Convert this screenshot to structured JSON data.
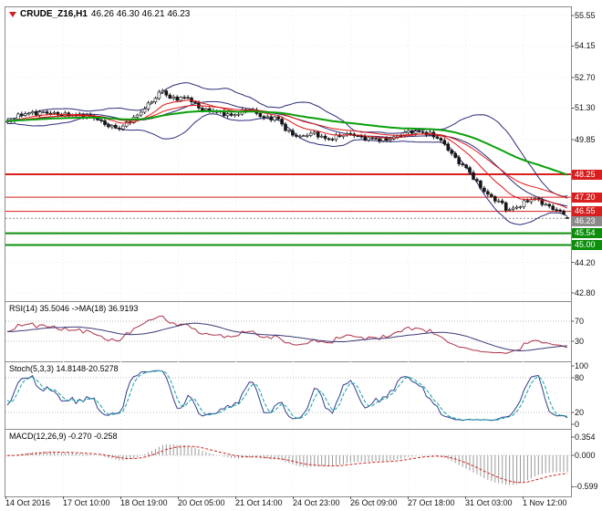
{
  "window": {
    "symbol": "CRUDE_Z16,H1",
    "ohlc": "46.26 46.30 46.21 46.23"
  },
  "colors": {
    "frame": "#8a8a8a",
    "grid": "#ececec",
    "candle": "#161616",
    "bull_fill": "#ffffff",
    "bear_fill": "#161616",
    "resistance_red": "#d81e1e",
    "support_green": "#0d8f0d",
    "current_gray": "#8a8a8a"
  },
  "chart_data": {
    "type": "candlestick",
    "symbol": "CRUDE_Z16,H1",
    "timeframe": "H1",
    "last_ohlc": {
      "open": 46.26,
      "high": 46.3,
      "low": 46.21,
      "close": 46.23
    },
    "main": {
      "ylim": [
        42.42,
        55.93
      ],
      "yticks": [
        "55.55",
        "54.15",
        "52.70",
        "51.30",
        "49.85",
        "44.20",
        "42.80"
      ],
      "grid_prices": [
        55.55,
        54.15,
        52.7,
        51.3,
        49.85,
        48.4,
        46.95,
        45.5,
        44.2,
        42.8
      ],
      "bar_count": 156,
      "price_keypoints": [
        [
          0.0,
          50.7
        ],
        [
          0.016,
          50.9
        ],
        [
          0.04,
          51.05
        ],
        [
          0.064,
          51.15
        ],
        [
          0.09,
          50.95
        ],
        [
          0.115,
          51.05
        ],
        [
          0.14,
          50.9
        ],
        [
          0.161,
          50.8
        ],
        [
          0.185,
          50.45
        ],
        [
          0.201,
          50.3
        ],
        [
          0.22,
          50.75
        ],
        [
          0.241,
          51.2
        ],
        [
          0.26,
          51.6
        ],
        [
          0.277,
          52.15
        ],
        [
          0.29,
          51.8
        ],
        [
          0.31,
          51.7
        ],
        [
          0.322,
          51.75
        ],
        [
          0.346,
          51.3
        ],
        [
          0.37,
          51.1
        ],
        [
          0.4,
          51.0
        ],
        [
          0.434,
          51.2
        ],
        [
          0.458,
          50.9
        ],
        [
          0.482,
          50.8
        ],
        [
          0.498,
          50.25
        ],
        [
          0.523,
          50.0
        ],
        [
          0.547,
          50.1
        ],
        [
          0.571,
          49.9
        ],
        [
          0.595,
          50.0
        ],
        [
          0.619,
          50.1
        ],
        [
          0.643,
          49.9
        ],
        [
          0.667,
          49.8
        ],
        [
          0.691,
          50.0
        ],
        [
          0.715,
          50.15
        ],
        [
          0.74,
          50.25
        ],
        [
          0.756,
          50.1
        ],
        [
          0.772,
          49.8
        ],
        [
          0.788,
          49.4
        ],
        [
          0.804,
          48.9
        ],
        [
          0.82,
          48.5
        ],
        [
          0.836,
          47.9
        ],
        [
          0.852,
          47.5
        ],
        [
          0.868,
          47.15
        ],
        [
          0.884,
          46.85
        ],
        [
          0.892,
          46.55
        ],
        [
          0.908,
          46.75
        ],
        [
          0.924,
          47.0
        ],
        [
          0.94,
          47.1
        ],
        [
          0.957,
          46.9
        ],
        [
          0.973,
          46.75
        ],
        [
          0.989,
          46.5
        ],
        [
          1.0,
          46.23
        ]
      ],
      "levels": [
        {
          "price": 48.25,
          "label": "48.25",
          "color": "#d81e1e",
          "width": 2
        },
        {
          "price": 47.2,
          "label": "47.20",
          "color": "#d81e1e",
          "width": 1
        },
        {
          "price": 46.55,
          "label": "46.55",
          "color": "#d81e1e",
          "width": 1
        },
        {
          "price": 45.54,
          "label": "45.54",
          "color": "#0d8f0d",
          "width": 2
        },
        {
          "price": 45.0,
          "label": "45.00",
          "color": "#0d8f0d",
          "width": 2
        }
      ],
      "current_price": {
        "value": 46.23,
        "label": "46.23",
        "color": "#8a8a8a"
      },
      "overlays": {
        "bollinger": {
          "period": 20,
          "deviation": 2,
          "color": "#2b2b7a"
        },
        "ma_fast": {
          "period": 12,
          "color": "#e01616"
        },
        "ma_slow": {
          "period": 26,
          "color": "#e01616"
        },
        "ma_long": {
          "period": 64,
          "color": "#0aa00a"
        }
      }
    },
    "rsi": {
      "label": "RSI(14) 35.5046 ->MA(18) 36.9193",
      "period": 14,
      "ma_period": 18,
      "value": 35.5046,
      "ma_value": 36.9193,
      "yticks": [
        "70",
        "30"
      ],
      "levels": [
        70,
        30
      ],
      "color": "#b03048",
      "ma_color": "#3a3a7a"
    },
    "stoch": {
      "label": "Stoch(5,3,3) 14.8148-20.5278",
      "k": 5,
      "d": 3,
      "slowing": 3,
      "value": 14.8148,
      "signal_value": 20.5278,
      "yticks": [
        "100",
        "80",
        "20",
        "0"
      ],
      "levels": [
        80,
        20
      ],
      "color": "#3a3a8a",
      "signal_color": "#00a8ae"
    },
    "macd": {
      "label": "MACD(12,26,9) -0.270 -0.258",
      "fast": 12,
      "slow": 26,
      "signal": 9,
      "value": -0.27,
      "signal_value": -0.258,
      "ylim": [
        -0.68,
        0.42
      ],
      "yticks": [
        "0.354",
        "0.000",
        "-0.599"
      ],
      "hist_color": "#9a9a9a",
      "signal_color": "#d02020"
    },
    "time_axis": {
      "labels": [
        "14 Oct 2016",
        "17 Oct 10:00",
        "18 Oct 19:00",
        "20 Oct 05:00",
        "21 Oct 14:00",
        "24 Oct 23:00",
        "26 Oct 09:00",
        "27 Oct 18:00",
        "31 Oct 03:00",
        "1 Nov 12:00"
      ]
    }
  }
}
